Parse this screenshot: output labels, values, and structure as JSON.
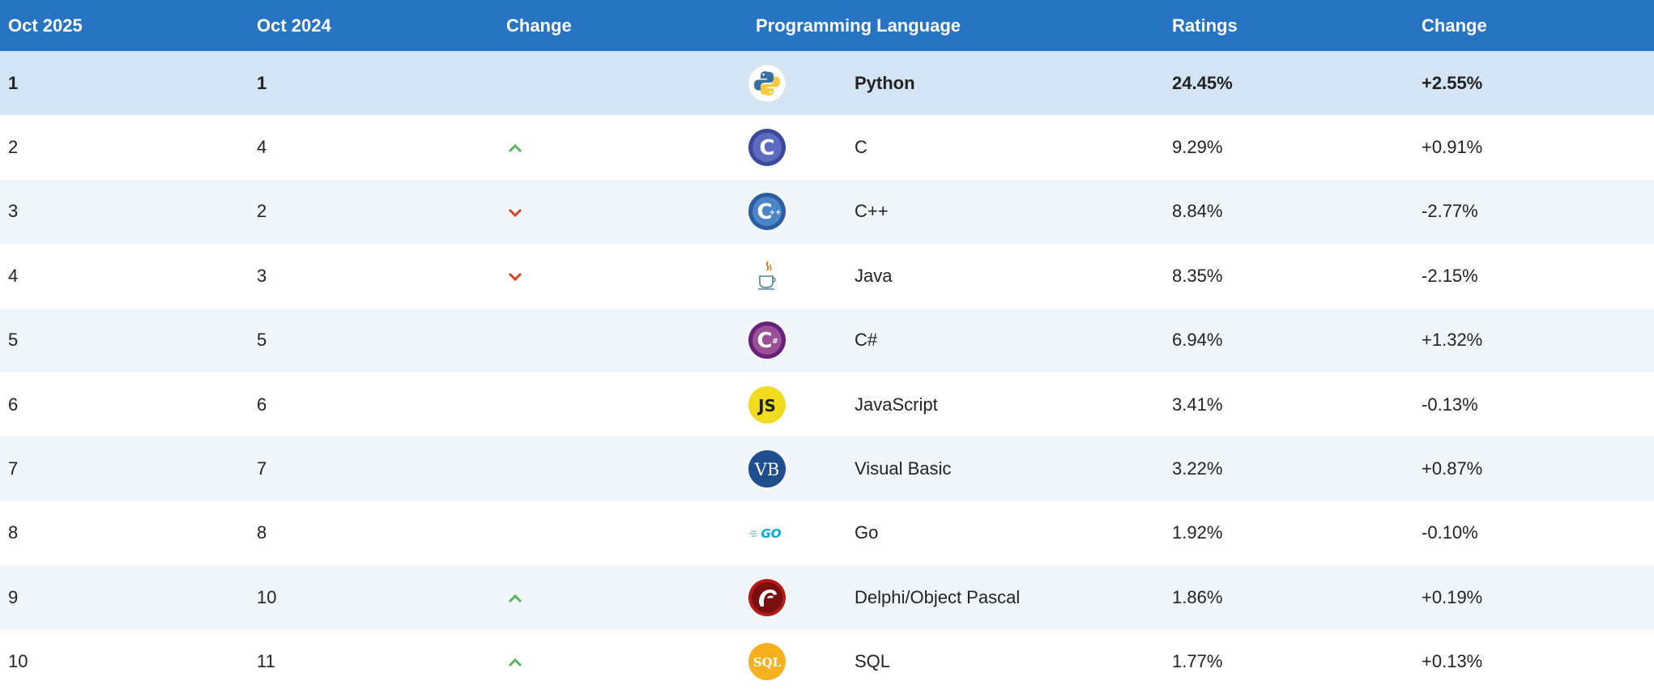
{
  "table": {
    "headers": {
      "current": "Oct 2025",
      "previous": "Oct 2024",
      "change": "Change",
      "language": "Programming Language",
      "ratings": "Ratings",
      "ratings_change": "Change"
    },
    "rows": [
      {
        "current": "1",
        "previous": "1",
        "trend": "none",
        "icon": "python-logo-icon",
        "language": "Python",
        "ratings": "24.45%",
        "change": "+2.55%"
      },
      {
        "current": "2",
        "previous": "4",
        "trend": "up",
        "icon": "c-logo-icon",
        "language": "C",
        "ratings": "9.29%",
        "change": "+0.91%"
      },
      {
        "current": "3",
        "previous": "2",
        "trend": "down",
        "icon": "cpp-logo-icon",
        "language": "C++",
        "ratings": "8.84%",
        "change": "-2.77%"
      },
      {
        "current": "4",
        "previous": "3",
        "trend": "down",
        "icon": "java-logo-icon",
        "language": "Java",
        "ratings": "8.35%",
        "change": "-2.15%"
      },
      {
        "current": "5",
        "previous": "5",
        "trend": "none",
        "icon": "csharp-logo-icon",
        "language": "C#",
        "ratings": "6.94%",
        "change": "+1.32%"
      },
      {
        "current": "6",
        "previous": "6",
        "trend": "none",
        "icon": "javascript-logo-icon",
        "language": "JavaScript",
        "ratings": "3.41%",
        "change": "-0.13%"
      },
      {
        "current": "7",
        "previous": "7",
        "trend": "none",
        "icon": "visual-basic-logo-icon",
        "language": "Visual Basic",
        "ratings": "3.22%",
        "change": "+0.87%"
      },
      {
        "current": "8",
        "previous": "8",
        "trend": "none",
        "icon": "go-logo-icon",
        "language": "Go",
        "ratings": "1.92%",
        "change": "-0.10%"
      },
      {
        "current": "9",
        "previous": "10",
        "trend": "up",
        "icon": "delphi-logo-icon",
        "language": "Delphi/Object Pascal",
        "ratings": "1.86%",
        "change": "+0.19%"
      },
      {
        "current": "10",
        "previous": "11",
        "trend": "up",
        "icon": "sql-logo-icon",
        "language": "SQL",
        "ratings": "1.77%",
        "change": "+0.13%"
      }
    ]
  },
  "colors": {
    "header_bg": "#2775c2",
    "highlight_row": "#d3e4f5",
    "up_arrow": "#5cb85c",
    "down_arrow": "#e0401c"
  },
  "logo_text": {
    "c": "C",
    "cpp": "C",
    "csharp": "C",
    "javascript": "JS",
    "visual_basic": "VB",
    "go": "GO",
    "sql": "SQL"
  }
}
